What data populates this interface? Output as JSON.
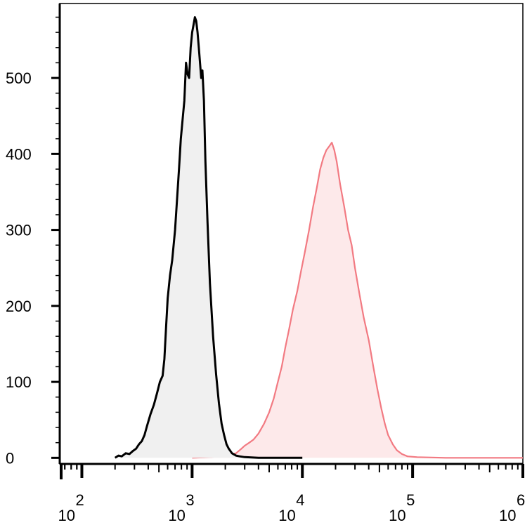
{
  "chart_data": {
    "type": "area",
    "xscale": "log",
    "xlim": [
      63,
      1000000
    ],
    "ylim": [
      -8,
      598
    ],
    "grid": false,
    "legend": "none",
    "title": "",
    "xlabel": "",
    "ylabel": "",
    "y_ticks": [
      0,
      100,
      200,
      300,
      400,
      500
    ],
    "y_tick_labels": [
      "0",
      "100",
      "200",
      "300",
      "400",
      "500"
    ],
    "x_ticks": [
      100,
      1000,
      10000,
      100000,
      1000000
    ],
    "x_tick_labels": [
      {
        "base": "10",
        "exp": "2"
      },
      {
        "base": "10",
        "exp": "3"
      },
      {
        "base": "10",
        "exp": "4"
      },
      {
        "base": "10",
        "exp": "5"
      },
      {
        "base": "10",
        "exp": "6"
      }
    ],
    "series": [
      {
        "color": "#000000",
        "fill": "#f0f0f0",
        "x": [
          200,
          215,
          230,
          250,
          270,
          290,
          310,
          330,
          350,
          370,
          390,
          420,
          450,
          480,
          510,
          540,
          560,
          580,
          600,
          630,
          660,
          700,
          730,
          760,
          790,
          820,
          850,
          880,
          910,
          940,
          970,
          1000,
          1030,
          1060,
          1090,
          1120,
          1150,
          1180,
          1210,
          1240,
          1280,
          1320,
          1380,
          1450,
          1550,
          1650,
          1750,
          1850,
          1950,
          2050,
          2150,
          2300,
          2500,
          2700,
          3000,
          4000,
          10000
        ],
        "y": [
          0,
          3,
          2,
          6,
          5,
          9,
          12,
          18,
          22,
          30,
          42,
          58,
          70,
          85,
          100,
          108,
          130,
          170,
          210,
          240,
          260,
          300,
          340,
          380,
          420,
          445,
          470,
          520,
          505,
          500,
          540,
          560,
          570,
          580,
          575,
          560,
          540,
          520,
          500,
          510,
          470,
          390,
          310,
          230,
          160,
          110,
          72,
          45,
          30,
          18,
          12,
          6,
          3,
          2,
          1,
          0,
          0
        ]
      },
      {
        "color": "#f27a82",
        "fill": "#fde9ea",
        "x": [
          1000,
          1500,
          2000,
          2500,
          2800,
          3000,
          3300,
          3600,
          4000,
          4500,
          5000,
          5500,
          6000,
          6500,
          7000,
          7600,
          8200,
          9000,
          9700,
          10500,
          11500,
          12500,
          13500,
          14500,
          15500,
          16500,
          17500,
          18500,
          19500,
          20500,
          22000,
          24000,
          26000,
          28000,
          30000,
          33000,
          36000,
          40000,
          44000,
          48000,
          52000,
          56000,
          60000,
          66000,
          72000,
          80000,
          90000,
          110000,
          200000,
          1000000
        ],
        "y": [
          0,
          1,
          3,
          6,
          12,
          16,
          20,
          24,
          32,
          45,
          60,
          78,
          100,
          120,
          145,
          170,
          195,
          220,
          245,
          270,
          300,
          330,
          355,
          380,
          395,
          405,
          410,
          415,
          405,
          390,
          360,
          330,
          300,
          280,
          250,
          215,
          185,
          155,
          120,
          90,
          65,
          45,
          30,
          18,
          10,
          5,
          2,
          1,
          0,
          0
        ]
      }
    ]
  }
}
